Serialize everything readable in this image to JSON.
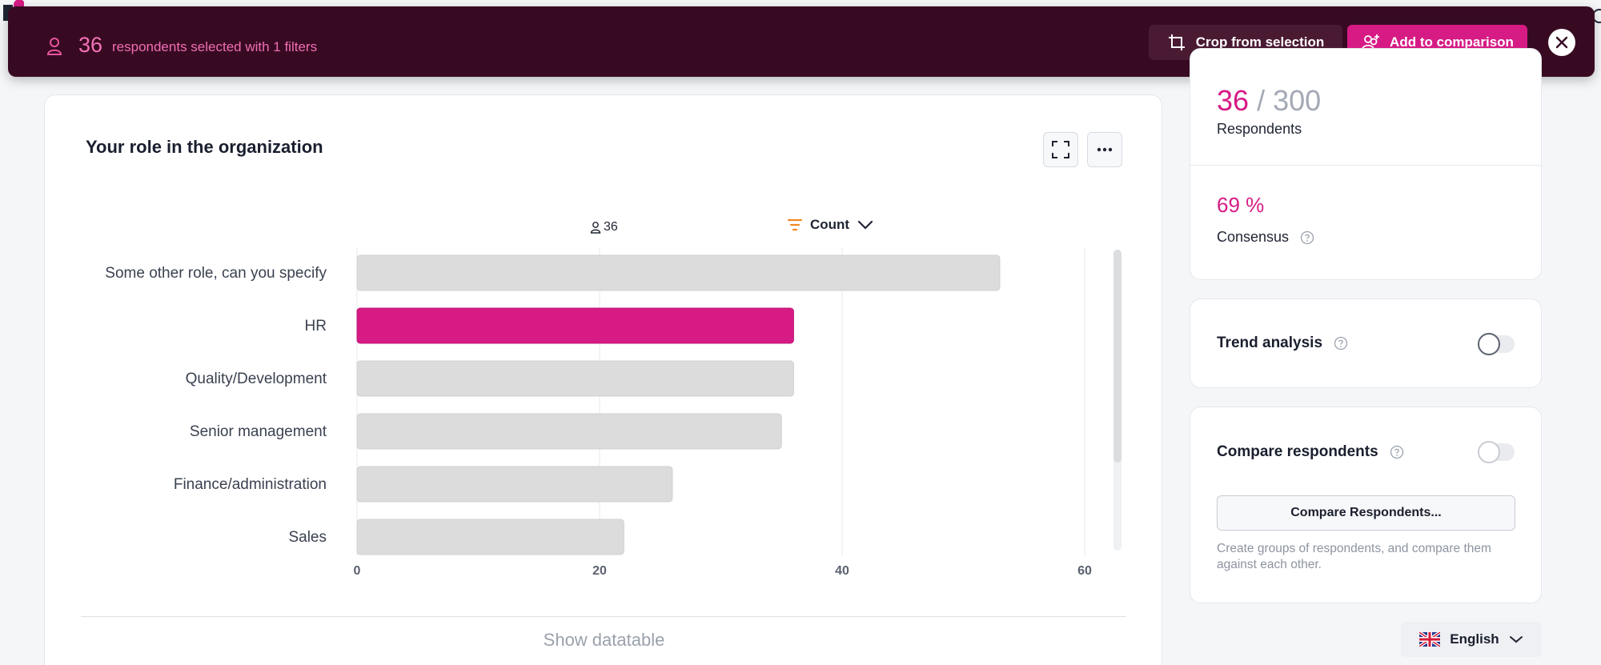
{
  "banner": {
    "count": "36",
    "text": "respondents selected with 1 filters",
    "crop_label": "Crop from selection",
    "add_label": "Add to comparison"
  },
  "card": {
    "title": "Your role in the organization",
    "respondent_count": "36",
    "sort_label": "Count",
    "show_datatable": "Show datatable"
  },
  "chart_data": {
    "type": "bar",
    "orientation": "horizontal",
    "categories": [
      "Some other role, can you specify",
      "HR",
      "Quality/Development",
      "Senior management",
      "Finance/administration",
      "Sales"
    ],
    "values": [
      53,
      36,
      36,
      35,
      26,
      22
    ],
    "highlighted": "HR",
    "x_ticks": [
      0,
      20,
      40,
      60
    ],
    "xlim": [
      0,
      67
    ],
    "grid": true,
    "colors": {
      "default": "#dcdcdc",
      "highlight": "#d61b85"
    }
  },
  "stats": {
    "selected": "36",
    "total": "/ 300",
    "respondents_label": "Respondents",
    "consensus_value": "69 %",
    "consensus_label": "Consensus"
  },
  "trend": {
    "title": "Trend analysis",
    "enabled": false
  },
  "compare": {
    "title": "Compare respondents",
    "enabled": false,
    "button_label": "Compare Respondents...",
    "description": "Create groups of respondents, and compare them against each other."
  },
  "language": {
    "label": "English"
  },
  "colors": {
    "accent": "#d61b85",
    "banner_bg": "#380a22"
  }
}
